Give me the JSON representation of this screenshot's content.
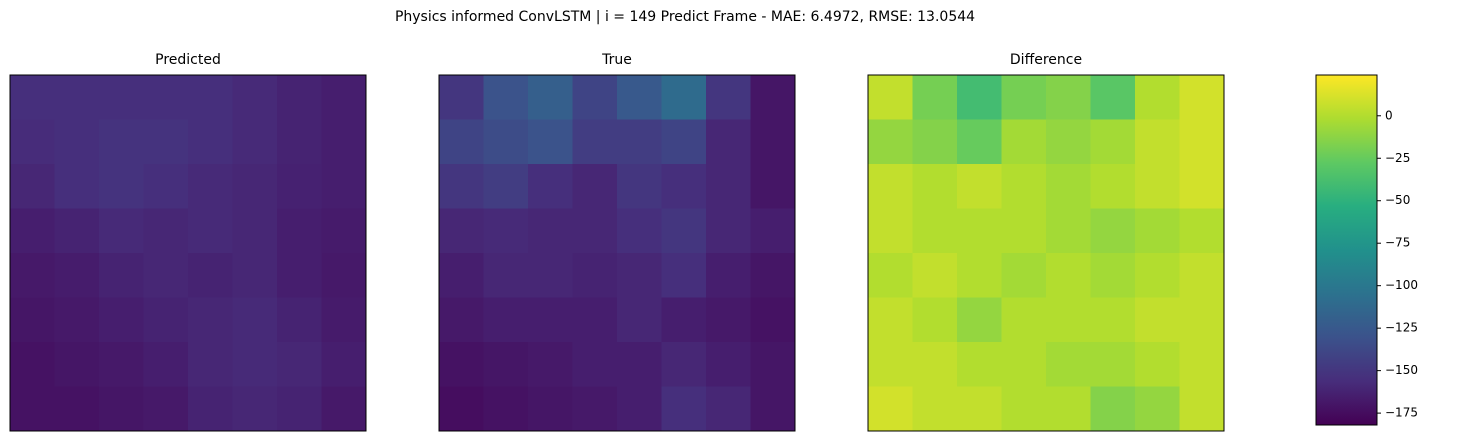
{
  "chart_data": {
    "type": "heatmap",
    "title": "Physics informed ConvLSTM | i = 149 Predict Frame - MAE: 6.4972, RMSE: 13.0544",
    "colormap": "viridis",
    "panels": [
      {
        "title": "Predicted",
        "values": [
          [
            -155,
            -155,
            -155,
            -155,
            -155,
            -158,
            -162,
            -165
          ],
          [
            -157,
            -155,
            -152,
            -152,
            -155,
            -158,
            -162,
            -165
          ],
          [
            -160,
            -155,
            -152,
            -155,
            -158,
            -160,
            -163,
            -165
          ],
          [
            -165,
            -162,
            -158,
            -160,
            -158,
            -160,
            -165,
            -167
          ],
          [
            -168,
            -166,
            -162,
            -160,
            -162,
            -160,
            -165,
            -168
          ],
          [
            -170,
            -168,
            -165,
            -162,
            -160,
            -158,
            -162,
            -167
          ],
          [
            -172,
            -170,
            -168,
            -165,
            -160,
            -158,
            -160,
            -165
          ],
          [
            -172,
            -172,
            -170,
            -168,
            -162,
            -160,
            -162,
            -168
          ]
        ]
      },
      {
        "title": "True",
        "values": [
          [
            -150,
            -130,
            -120,
            -140,
            -125,
            -110,
            -150,
            -170
          ],
          [
            -140,
            -135,
            -130,
            -145,
            -145,
            -140,
            -160,
            -170
          ],
          [
            -150,
            -145,
            -155,
            -160,
            -150,
            -155,
            -160,
            -170
          ],
          [
            -160,
            -158,
            -160,
            -160,
            -155,
            -150,
            -160,
            -165
          ],
          [
            -165,
            -160,
            -160,
            -162,
            -160,
            -155,
            -165,
            -170
          ],
          [
            -168,
            -165,
            -165,
            -165,
            -160,
            -165,
            -168,
            -172
          ],
          [
            -172,
            -170,
            -168,
            -165,
            -165,
            -160,
            -165,
            -170
          ],
          [
            -175,
            -172,
            -170,
            -168,
            -165,
            -155,
            -160,
            -170
          ]
        ]
      },
      {
        "title": "Difference",
        "values": [
          [
            5,
            -20,
            -40,
            -20,
            -15,
            -30,
            0,
            10
          ],
          [
            -10,
            -15,
            -25,
            -5,
            -10,
            -5,
            5,
            10
          ],
          [
            5,
            0,
            5,
            0,
            -5,
            0,
            5,
            10
          ],
          [
            5,
            0,
            0,
            0,
            -5,
            -10,
            -5,
            0
          ],
          [
            0,
            5,
            0,
            -5,
            0,
            -5,
            0,
            5
          ],
          [
            5,
            0,
            -10,
            0,
            0,
            0,
            5,
            5
          ],
          [
            5,
            5,
            0,
            0,
            -5,
            -5,
            0,
            5
          ],
          [
            10,
            5,
            5,
            0,
            0,
            -15,
            -10,
            5
          ]
        ]
      }
    ],
    "colorbar": {
      "ylim": [
        -182,
        24
      ],
      "yticks": [
        0,
        {
          "value": -25,
          "label": "−25"
        },
        {
          "value": -50,
          "label": "−50"
        },
        {
          "value": -75,
          "label": "−75"
        },
        {
          "value": -100,
          "label": "−100"
        },
        {
          "value": -125,
          "label": "−125"
        },
        {
          "value": -150,
          "label": "−150"
        },
        {
          "value": -175,
          "label": "−175"
        }
      ]
    }
  }
}
